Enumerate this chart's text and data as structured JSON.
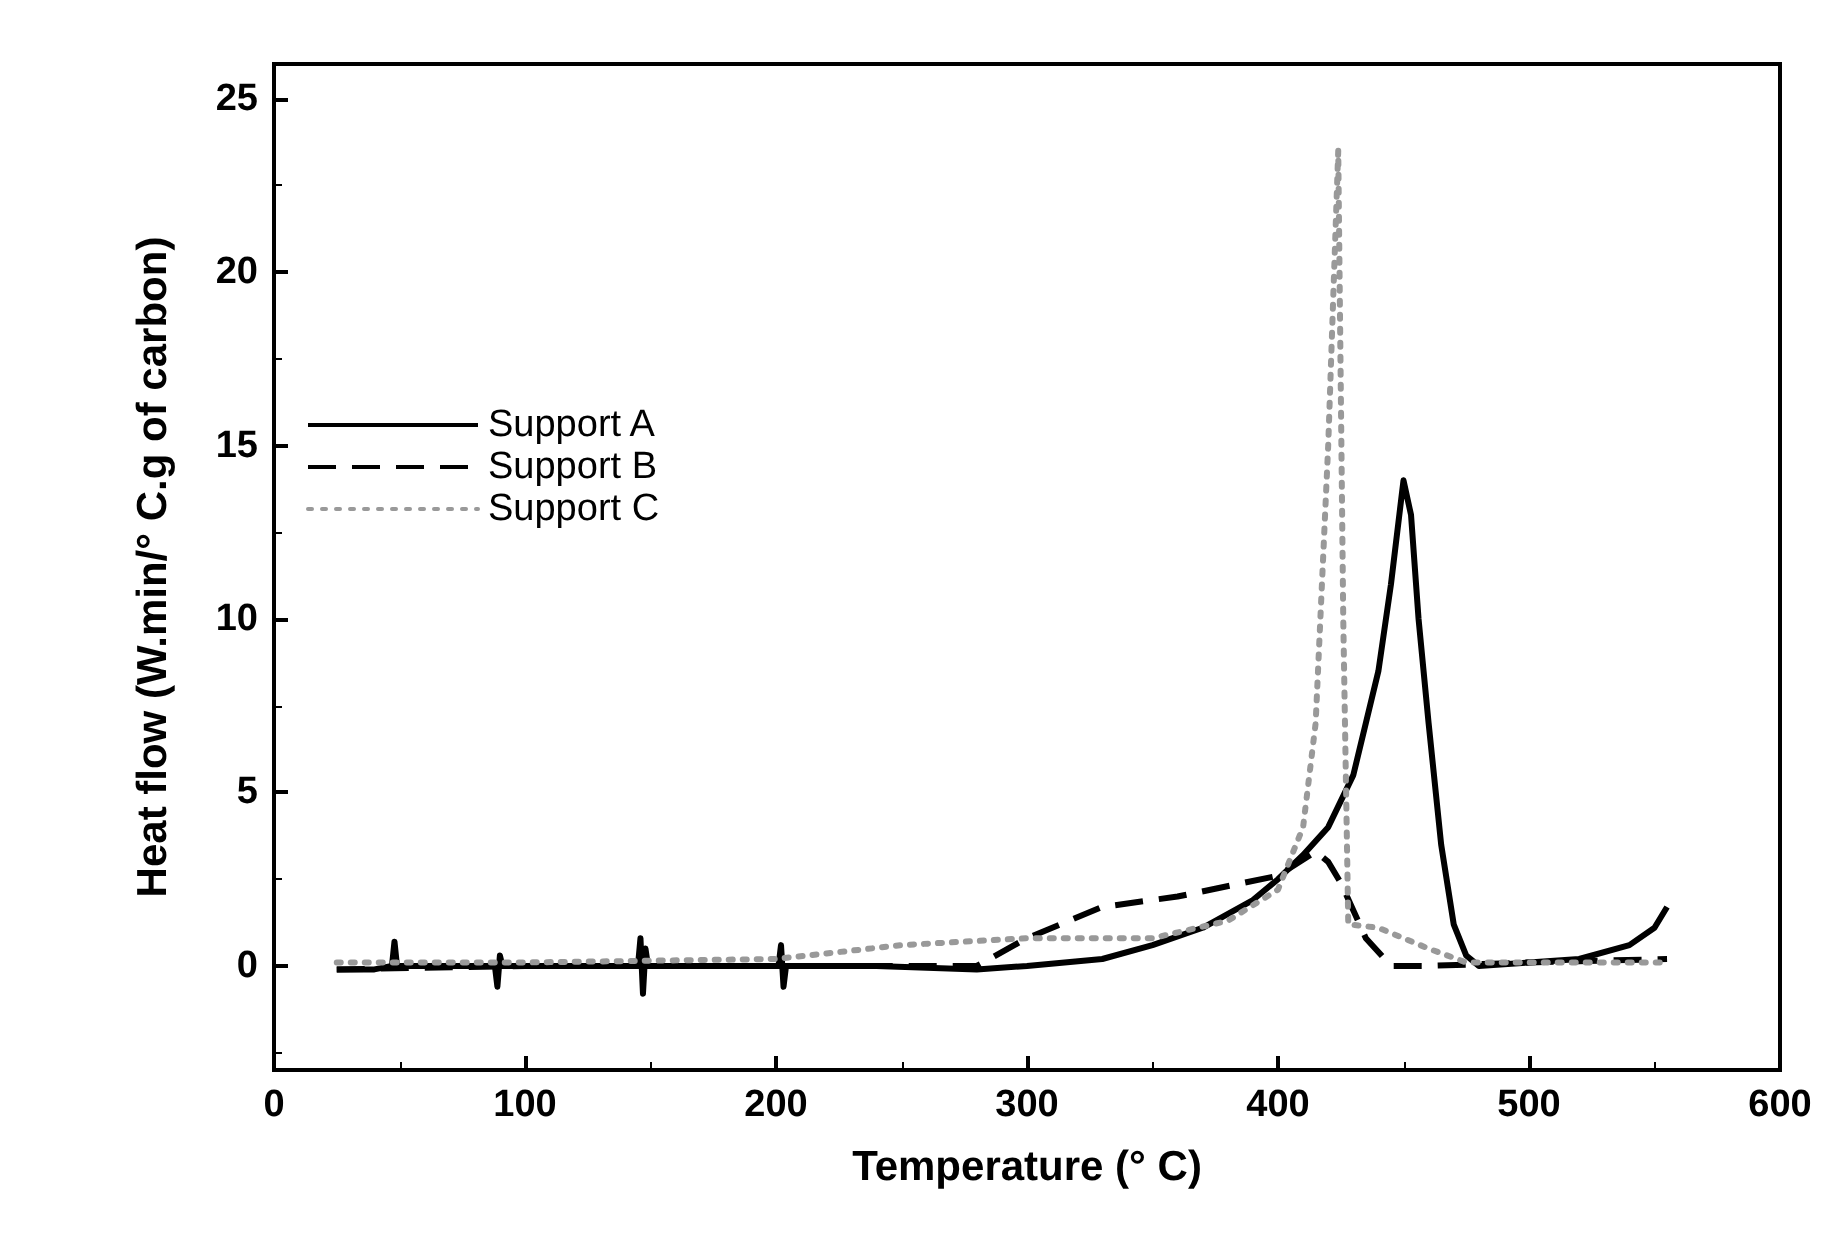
{
  "chart_data": {
    "type": "line",
    "xlabel": "Temperature (° C)",
    "ylabel": "Heat flow (W.min/° C.g of carbon)",
    "xlim": [
      0,
      600
    ],
    "xticks": [
      0,
      100,
      200,
      300,
      400,
      500,
      600
    ],
    "ylim": [
      -3,
      26
    ],
    "yticks": [
      0,
      5,
      10,
      15,
      20,
      25
    ],
    "grid": false,
    "legend": "left",
    "marker": "none",
    "series": [
      {
        "name": "Support A",
        "color": "#000000",
        "line_style": "solid",
        "x": [
          25,
          40,
          47,
          48,
          49,
          60,
          88,
          89,
          90,
          91,
          120,
          145,
          146,
          147,
          148,
          149,
          180,
          201,
          202,
          203,
          204,
          240,
          280,
          300,
          330,
          350,
          370,
          390,
          400,
          410,
          420,
          430,
          440,
          445,
          450,
          453,
          456,
          460,
          465,
          470,
          475,
          480,
          500,
          520,
          540,
          550,
          555
        ],
        "values": [
          -0.1,
          -0.1,
          0,
          0.7,
          0,
          0,
          0,
          -0.6,
          0.3,
          0,
          0,
          0,
          0.8,
          -0.8,
          0.5,
          0,
          0,
          0,
          0.6,
          -0.6,
          0,
          0,
          -0.1,
          0,
          0.2,
          0.6,
          1.1,
          1.9,
          2.5,
          3.2,
          4,
          5.5,
          8.5,
          11,
          14,
          13,
          10,
          7,
          3.5,
          1.2,
          0.3,
          0,
          0.1,
          0.2,
          0.6,
          1.1,
          1.7
        ]
      },
      {
        "name": "Support B",
        "color": "#000000",
        "line_style": "dashed",
        "x": [
          25,
          100,
          200,
          280,
          300,
          330,
          360,
          400,
          415,
          420,
          425,
          435,
          445,
          460,
          500,
          555
        ],
        "values": [
          -0.1,
          0,
          0,
          0,
          0.8,
          1.7,
          2.0,
          2.6,
          3.3,
          3.0,
          2.4,
          0.8,
          0,
          0,
          0.1,
          0.2
        ]
      },
      {
        "name": "Support C",
        "color": "#999999",
        "line_style": "dotted",
        "x": [
          25,
          100,
          200,
          250,
          300,
          350,
          380,
          400,
          410,
          415,
          420,
          424,
          426,
          428,
          440,
          460,
          475,
          500,
          555
        ],
        "values": [
          0.1,
          0.1,
          0.2,
          0.6,
          0.8,
          0.8,
          1.3,
          2.2,
          4,
          7,
          15,
          23.5,
          10,
          1.2,
          1.1,
          0.5,
          0.1,
          0.1,
          0.1
        ]
      }
    ]
  }
}
